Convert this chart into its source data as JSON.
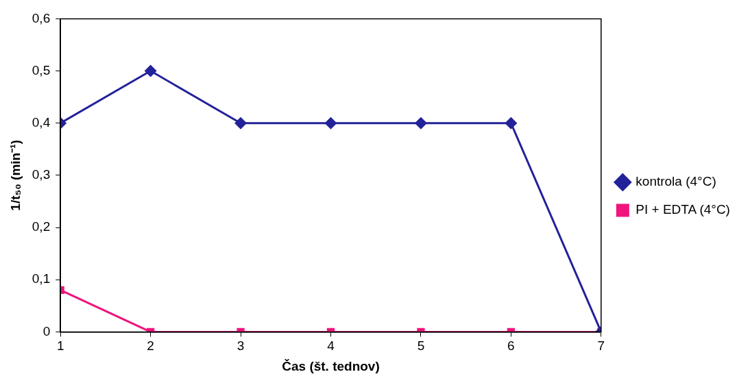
{
  "chart_data": {
    "type": "line",
    "xlabel": "Čas (št. tednov)",
    "ylabel": "1/t₅₀ (min⁻¹)",
    "x": [
      1,
      2,
      3,
      4,
      5,
      6,
      7
    ],
    "xlim": [
      1,
      7
    ],
    "xticks": [
      1,
      2,
      3,
      4,
      5,
      6,
      7
    ],
    "ylim": [
      0,
      0.6
    ],
    "yticks": [
      {
        "value": 0,
        "label": "0"
      },
      {
        "value": 0.1,
        "label": "0,1"
      },
      {
        "value": 0.2,
        "label": "0,2"
      },
      {
        "value": 0.3,
        "label": "0,3"
      },
      {
        "value": 0.4,
        "label": "0,4"
      },
      {
        "value": 0.5,
        "label": "0,5"
      },
      {
        "value": 0.6,
        "label": "0,6"
      }
    ],
    "grid": false,
    "legend": "right",
    "line_style": "solid",
    "series": [
      {
        "name": "kontrola (4°C)",
        "color": "#22229a",
        "marker": "diamond",
        "values": [
          0.4,
          0.5,
          0.4,
          0.4,
          0.4,
          0.4,
          0
        ]
      },
      {
        "name": "PI + EDTA (4°C)",
        "color": "#f0147c",
        "marker": "square",
        "values": [
          0.08,
          0,
          0,
          0,
          0,
          0,
          0
        ]
      }
    ]
  }
}
